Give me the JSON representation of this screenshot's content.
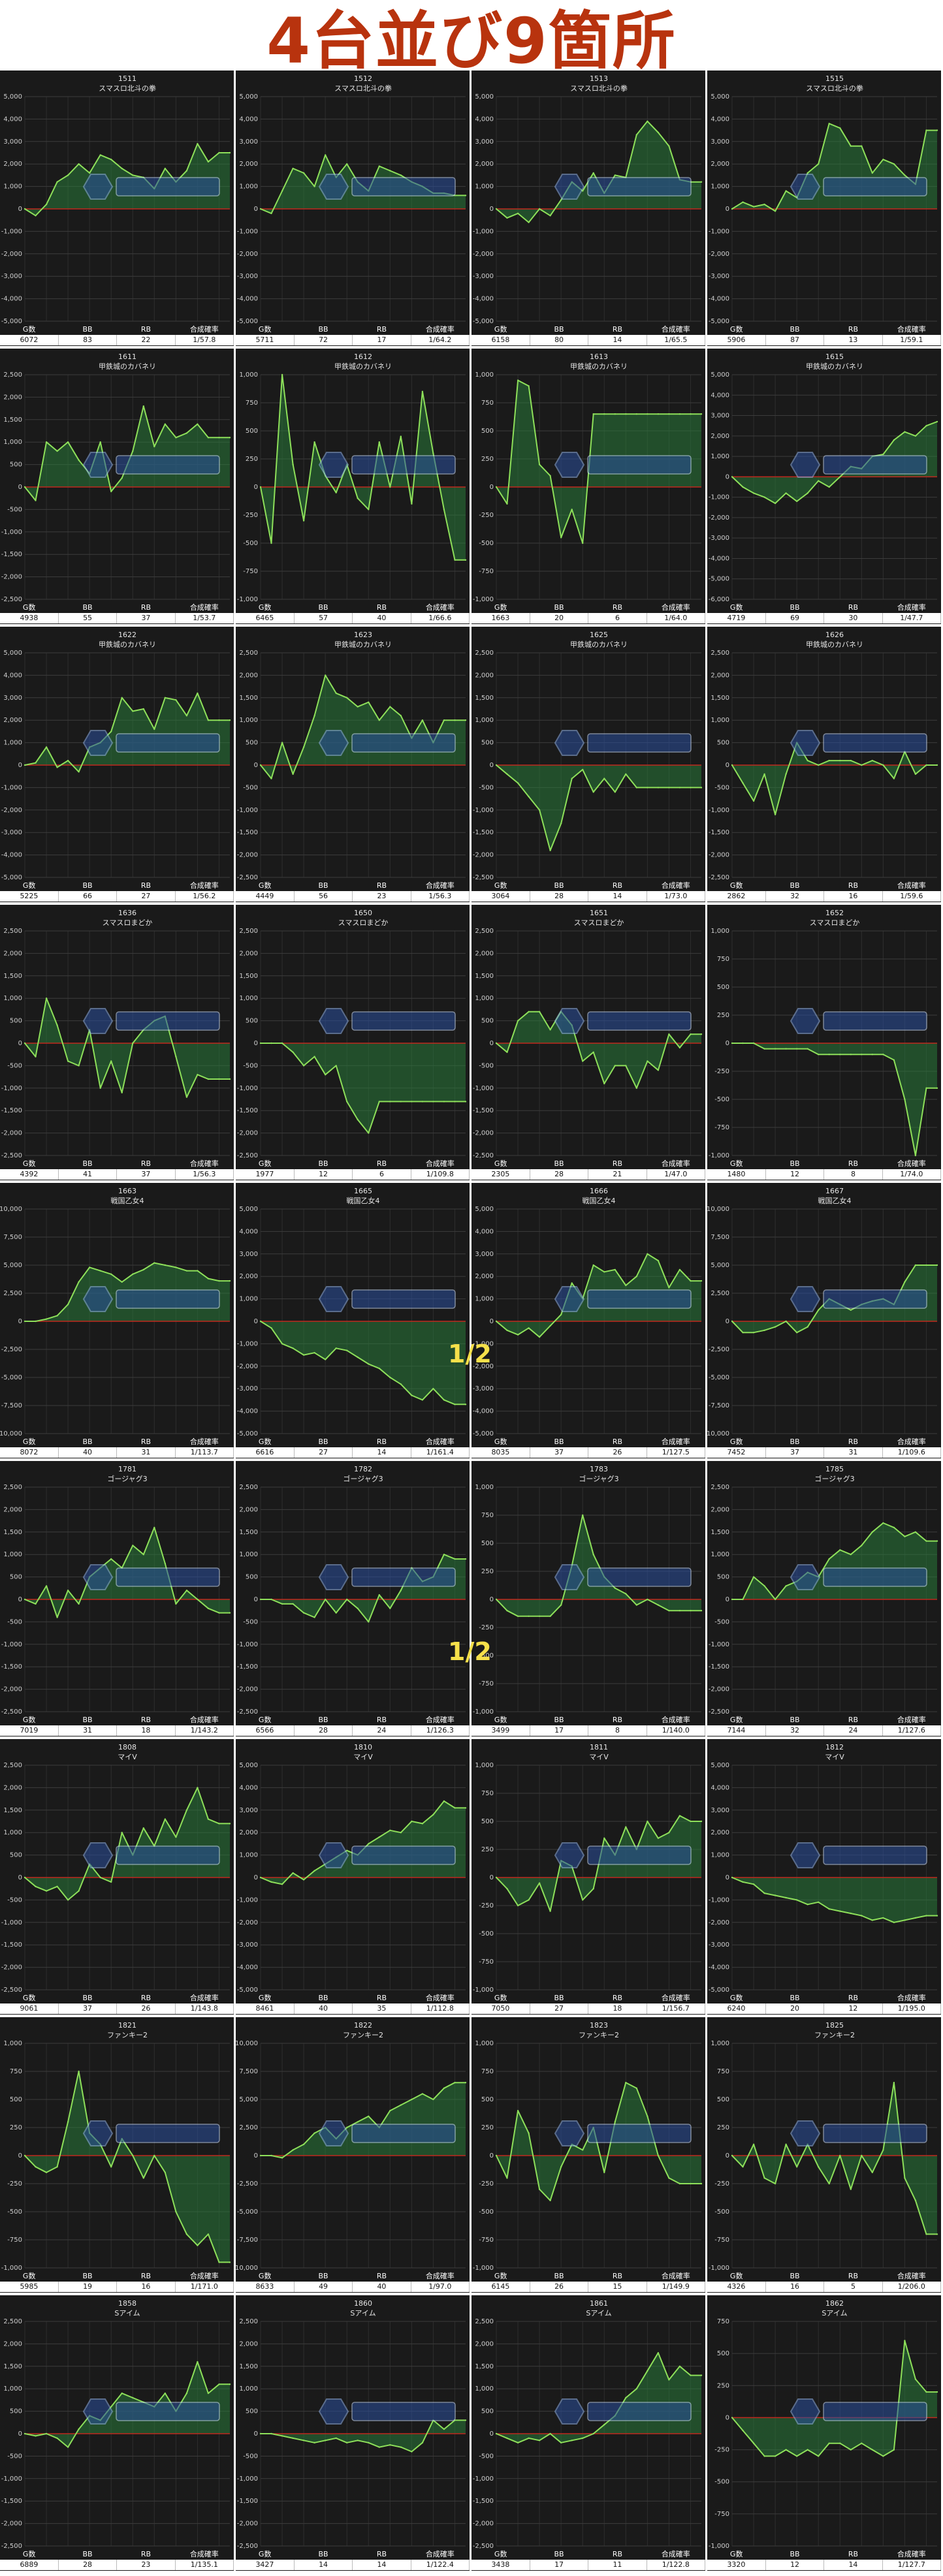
{
  "page_title": "4台並び9箇所",
  "colors": {
    "title": "#b8330e",
    "panel_bg": "#1a1a1a",
    "line": "#8ee05a",
    "fill": "#2a7a3a",
    "zero_line": "#c0281e",
    "grid": "#3c3c3c",
    "half_marker": "#f5e04a"
  },
  "stat_headers": [
    "G数",
    "BB",
    "RB",
    "合成確率"
  ],
  "half_markers": [
    "1/2",
    "1/2"
  ],
  "chart_data": [
    {
      "type": "line",
      "machine": "1511",
      "name": "スマスロ北斗の拳",
      "ylim": [
        -5000,
        5000
      ],
      "step": 1000,
      "values": [
        0,
        -300,
        200,
        1200,
        1500,
        2000,
        1600,
        2400,
        2200,
        1800,
        1500,
        1400,
        900,
        1800,
        1200,
        1700,
        2900,
        2100,
        2500,
        2500
      ],
      "stats": [
        "6072",
        "83",
        "22",
        "1/57.8"
      ]
    },
    {
      "type": "line",
      "machine": "1512",
      "name": "スマスロ北斗の拳",
      "ylim": [
        -5000,
        5000
      ],
      "step": 1000,
      "values": [
        0,
        -200,
        800,
        1800,
        1600,
        1000,
        2400,
        1400,
        2000,
        1200,
        800,
        1900,
        1700,
        1500,
        1200,
        1000,
        700,
        700,
        600,
        600
      ],
      "stats": [
        "5711",
        "72",
        "17",
        "1/64.2"
      ]
    },
    {
      "type": "line",
      "machine": "1513",
      "name": "スマスロ北斗の拳",
      "ylim": [
        -5000,
        5000
      ],
      "step": 1000,
      "values": [
        0,
        -400,
        -200,
        -600,
        0,
        -300,
        400,
        1200,
        800,
        1600,
        700,
        1500,
        1400,
        3300,
        3900,
        3400,
        2800,
        1300,
        1200,
        1200
      ],
      "stats": [
        "6158",
        "80",
        "14",
        "1/65.5"
      ]
    },
    {
      "type": "line",
      "machine": "1515",
      "name": "スマスロ北斗の拳",
      "ylim": [
        -5000,
        5000
      ],
      "step": 1000,
      "values": [
        0,
        300,
        100,
        200,
        -100,
        800,
        500,
        1600,
        2000,
        3800,
        3600,
        2800,
        2800,
        1600,
        2200,
        2000,
        1500,
        1100,
        3500,
        3500
      ],
      "stats": [
        "5906",
        "87",
        "13",
        "1/59.1"
      ]
    },
    {
      "type": "line",
      "machine": "1611",
      "name": "甲鉄城のカバネリ",
      "ylim": [
        -2500,
        2500
      ],
      "step": 500,
      "values": [
        0,
        -300,
        1000,
        800,
        1000,
        600,
        300,
        1000,
        -100,
        200,
        800,
        1800,
        900,
        1400,
        1100,
        1200,
        1400,
        1100,
        1100,
        1100
      ],
      "stats": [
        "4938",
        "55",
        "37",
        "1/53.7"
      ]
    },
    {
      "type": "line",
      "machine": "1612",
      "name": "甲鉄城のカバネリ",
      "ylim": [
        -1000,
        1000
      ],
      "step": 250,
      "values": [
        0,
        -500,
        1000,
        200,
        -300,
        400,
        100,
        -50,
        200,
        -100,
        -200,
        400,
        0,
        450,
        -150,
        850,
        300,
        -200,
        -650,
        -650
      ],
      "stats": [
        "6465",
        "57",
        "40",
        "1/66.6"
      ]
    },
    {
      "type": "line",
      "machine": "1613",
      "name": "甲鉄城のカバネリ",
      "ylim": [
        -1000,
        1000
      ],
      "step": 250,
      "values": [
        0,
        -150,
        950,
        900,
        200,
        100,
        -450,
        -200,
        -500,
        650,
        650,
        650,
        650,
        650,
        650,
        650,
        650,
        650,
        650,
        650
      ],
      "stats": [
        "1663",
        "20",
        "6",
        "1/64.0"
      ]
    },
    {
      "type": "line",
      "machine": "1615",
      "name": "甲鉄城のカバネリ",
      "ylim": [
        -6000,
        5000
      ],
      "step": 1000,
      "values": [
        0,
        -500,
        -800,
        -1000,
        -1300,
        -800,
        -1200,
        -800,
        -200,
        -500,
        0,
        500,
        400,
        1000,
        1100,
        1800,
        2200,
        2000,
        2500,
        2700
      ],
      "stats": [
        "4719",
        "69",
        "30",
        "1/47.7"
      ]
    },
    {
      "type": "line",
      "machine": "1622",
      "name": "甲鉄城のカバネリ",
      "ylim": [
        -5000,
        5000
      ],
      "step": 1000,
      "values": [
        0,
        100,
        800,
        -100,
        200,
        -300,
        800,
        1000,
        1500,
        3000,
        2400,
        2500,
        1600,
        3000,
        2900,
        2200,
        3200,
        2000,
        2000,
        2000
      ],
      "stats": [
        "5225",
        "66",
        "27",
        "1/56.2"
      ]
    },
    {
      "type": "line",
      "machine": "1623",
      "name": "甲鉄城のカバネリ",
      "ylim": [
        -2500,
        2500
      ],
      "step": 500,
      "values": [
        0,
        -300,
        500,
        -200,
        400,
        1100,
        2000,
        1600,
        1500,
        1300,
        1400,
        1000,
        1300,
        1100,
        600,
        1000,
        500,
        1000,
        1000,
        1000
      ],
      "stats": [
        "4449",
        "56",
        "23",
        "1/56.3"
      ]
    },
    {
      "type": "line",
      "machine": "1625",
      "name": "甲鉄城のカバネリ",
      "ylim": [
        -2500,
        2500
      ],
      "step": 500,
      "values": [
        0,
        -200,
        -400,
        -700,
        -1000,
        -1900,
        -1300,
        -300,
        -100,
        -600,
        -300,
        -600,
        -200,
        -500,
        -500,
        -500,
        -500,
        -500,
        -500,
        -500
      ],
      "stats": [
        "3064",
        "28",
        "14",
        "1/73.0"
      ]
    },
    {
      "type": "line",
      "machine": "1626",
      "name": "甲鉄城のカバネリ",
      "ylim": [
        -2500,
        2500
      ],
      "step": 500,
      "values": [
        0,
        -400,
        -800,
        -200,
        -1100,
        -200,
        500,
        100,
        0,
        100,
        100,
        100,
        0,
        100,
        0,
        -300,
        300,
        -200,
        0,
        0
      ],
      "stats": [
        "2862",
        "32",
        "16",
        "1/59.6"
      ]
    },
    {
      "type": "line",
      "machine": "1636",
      "name": "スマスロまどか",
      "ylim": [
        -2500,
        2500
      ],
      "step": 500,
      "values": [
        0,
        -300,
        1000,
        400,
        -400,
        -500,
        300,
        -1000,
        -400,
        -1100,
        0,
        300,
        500,
        600,
        -300,
        -1200,
        -700,
        -800,
        -800,
        -800
      ],
      "stats": [
        "4392",
        "41",
        "37",
        "1/56.3"
      ]
    },
    {
      "type": "line",
      "machine": "1650",
      "name": "スマスロまどか",
      "ylim": [
        -2500,
        2500
      ],
      "step": 500,
      "values": [
        0,
        0,
        0,
        -200,
        -500,
        -300,
        -700,
        -500,
        -1300,
        -1700,
        -2000,
        -1300,
        -1300,
        -1300,
        -1300,
        -1300,
        -1300,
        -1300,
        -1300,
        -1300
      ],
      "stats": [
        "1977",
        "12",
        "6",
        "1/109.8"
      ]
    },
    {
      "type": "line",
      "machine": "1651",
      "name": "スマスロまどか",
      "ylim": [
        -2500,
        2500
      ],
      "step": 500,
      "values": [
        0,
        -200,
        500,
        700,
        700,
        300,
        700,
        400,
        -400,
        -200,
        -900,
        -500,
        -500,
        -1000,
        -400,
        -600,
        200,
        -100,
        200,
        200
      ],
      "stats": [
        "2305",
        "28",
        "21",
        "1/47.0"
      ]
    },
    {
      "type": "line",
      "machine": "1652",
      "name": "スマスロまどか",
      "ylim": [
        -1000,
        1000
      ],
      "step": 250,
      "values": [
        0,
        0,
        0,
        -50,
        -50,
        -50,
        -50,
        -50,
        -100,
        -100,
        -100,
        -100,
        -100,
        -100,
        -100,
        -150,
        -500,
        -1000,
        -400,
        -400
      ],
      "stats": [
        "1480",
        "12",
        "8",
        "1/74.0"
      ]
    },
    {
      "type": "line",
      "machine": "1663",
      "name": "戦国乙女4",
      "ylim": [
        -10000,
        10000
      ],
      "step": 2500,
      "values": [
        0,
        0,
        200,
        500,
        1500,
        3500,
        4800,
        4500,
        4200,
        3500,
        4200,
        4600,
        5200,
        5000,
        4800,
        4500,
        4500,
        3800,
        3600,
        3600
      ],
      "stats": [
        "8072",
        "40",
        "31",
        "1/113.7"
      ]
    },
    {
      "type": "line",
      "machine": "1665",
      "name": "戦国乙女4",
      "ylim": [
        -5000,
        5000
      ],
      "step": 1000,
      "values": [
        0,
        -300,
        -1000,
        -1200,
        -1500,
        -1400,
        -1700,
        -1200,
        -1300,
        -1600,
        -1900,
        -2100,
        -2500,
        -2800,
        -3300,
        -3500,
        -3000,
        -3500,
        -3700,
        -3700
      ],
      "stats": [
        "6616",
        "27",
        "14",
        "1/161.4"
      ]
    },
    {
      "type": "line",
      "machine": "1666",
      "name": "戦国乙女4",
      "ylim": [
        -5000,
        5000
      ],
      "step": 1000,
      "values": [
        0,
        -400,
        -600,
        -300,
        -700,
        -200,
        300,
        1700,
        1000,
        2500,
        2200,
        2300,
        1600,
        2000,
        3000,
        2700,
        1500,
        2300,
        1800,
        1800
      ],
      "stats": [
        "8035",
        "37",
        "26",
        "1/127.5"
      ]
    },
    {
      "type": "line",
      "machine": "1667",
      "name": "戦国乙女4",
      "ylim": [
        -10000,
        10000
      ],
      "step": 2500,
      "values": [
        0,
        -1000,
        -1000,
        -800,
        -500,
        0,
        -1000,
        -500,
        1000,
        2000,
        1500,
        1000,
        1500,
        1800,
        2000,
        1500,
        3500,
        5000,
        5000,
        5000
      ],
      "stats": [
        "7452",
        "37",
        "31",
        "1/109.6"
      ]
    },
    {
      "type": "line",
      "machine": "1781",
      "name": "ゴージャグ3",
      "ylim": [
        -2500,
        2500
      ],
      "step": 500,
      "values": [
        0,
        -100,
        300,
        -400,
        200,
        -100,
        500,
        700,
        900,
        700,
        1200,
        1000,
        1600,
        800,
        -100,
        200,
        0,
        -200,
        -300,
        -300
      ],
      "stats": [
        "7019",
        "31",
        "18",
        "1/143.2"
      ]
    },
    {
      "type": "line",
      "machine": "1782",
      "name": "ゴージャグ3",
      "ylim": [
        -2500,
        2500
      ],
      "step": 500,
      "values": [
        0,
        0,
        -100,
        -100,
        -300,
        -400,
        0,
        -300,
        0,
        -200,
        -500,
        100,
        -200,
        200,
        700,
        400,
        500,
        1000,
        900,
        900
      ],
      "stats": [
        "6566",
        "28",
        "24",
        "1/126.3"
      ]
    },
    {
      "type": "line",
      "machine": "1783",
      "name": "ゴージャグ3",
      "ylim": [
        -1000,
        1000
      ],
      "step": 250,
      "values": [
        0,
        -100,
        -150,
        -150,
        -150,
        -150,
        -50,
        300,
        750,
        400,
        200,
        100,
        50,
        -50,
        0,
        -50,
        -100,
        -100,
        -100,
        -100
      ],
      "stats": [
        "3499",
        "17",
        "8",
        "1/140.0"
      ]
    },
    {
      "type": "line",
      "machine": "1785",
      "name": "ゴージャグ3",
      "ylim": [
        -2500,
        2500
      ],
      "step": 500,
      "values": [
        0,
        0,
        500,
        300,
        0,
        300,
        400,
        600,
        500,
        900,
        1100,
        1000,
        1200,
        1500,
        1700,
        1600,
        1400,
        1500,
        1300,
        1300
      ],
      "stats": [
        "7144",
        "32",
        "24",
        "1/127.6"
      ]
    },
    {
      "type": "line",
      "machine": "1808",
      "name": "マイV",
      "ylim": [
        -2500,
        2500
      ],
      "step": 500,
      "values": [
        0,
        -200,
        -300,
        -200,
        -500,
        -300,
        300,
        0,
        -100,
        1000,
        500,
        1100,
        700,
        1300,
        900,
        1500,
        2000,
        1300,
        1200,
        1200
      ],
      "stats": [
        "9061",
        "37",
        "26",
        "1/143.8"
      ]
    },
    {
      "type": "line",
      "machine": "1810",
      "name": "マイV",
      "ylim": [
        -5000,
        5000
      ],
      "step": 1000,
      "values": [
        0,
        -200,
        -300,
        200,
        -100,
        300,
        600,
        900,
        1200,
        1000,
        1500,
        1800,
        2100,
        2000,
        2500,
        2400,
        2800,
        3400,
        3100,
        3100
      ],
      "stats": [
        "8461",
        "40",
        "35",
        "1/112.8"
      ]
    },
    {
      "type": "line",
      "machine": "1811",
      "name": "マイV",
      "ylim": [
        -1000,
        1000
      ],
      "step": 250,
      "values": [
        0,
        -100,
        -250,
        -200,
        -50,
        -300,
        150,
        100,
        -200,
        -100,
        350,
        200,
        450,
        250,
        500,
        350,
        400,
        550,
        500,
        500
      ],
      "stats": [
        "7050",
        "27",
        "18",
        "1/156.7"
      ]
    },
    {
      "type": "line",
      "machine": "1812",
      "name": "マイV",
      "ylim": [
        -5000,
        5000
      ],
      "step": 1000,
      "values": [
        0,
        -200,
        -300,
        -700,
        -800,
        -900,
        -1000,
        -1200,
        -1100,
        -1400,
        -1500,
        -1600,
        -1700,
        -1900,
        -1800,
        -2000,
        -1900,
        -1800,
        -1700,
        -1700
      ],
      "stats": [
        "6240",
        "20",
        "12",
        "1/195.0"
      ]
    },
    {
      "type": "line",
      "machine": "1821",
      "name": "ファンキー2",
      "ylim": [
        -1000,
        1000
      ],
      "step": 250,
      "values": [
        0,
        -100,
        -150,
        -100,
        300,
        750,
        200,
        100,
        -100,
        150,
        0,
        -200,
        0,
        -150,
        -500,
        -700,
        -800,
        -700,
        -950,
        -950
      ],
      "stats": [
        "5985",
        "19",
        "16",
        "1/171.0"
      ]
    },
    {
      "type": "line",
      "machine": "1822",
      "name": "ファンキー2",
      "ylim": [
        -10000,
        10000
      ],
      "step": 2500,
      "values": [
        0,
        0,
        -200,
        500,
        1000,
        2000,
        2500,
        1500,
        2500,
        3000,
        3500,
        2500,
        4000,
        4500,
        5000,
        5500,
        5000,
        6000,
        6500,
        6500
      ],
      "stats": [
        "8633",
        "49",
        "40",
        "1/97.0"
      ]
    },
    {
      "type": "line",
      "machine": "1823",
      "name": "ファンキー2",
      "ylim": [
        -1000,
        1000
      ],
      "step": 250,
      "values": [
        0,
        -200,
        400,
        200,
        -300,
        -400,
        -100,
        100,
        50,
        250,
        -150,
        300,
        650,
        600,
        350,
        0,
        -200,
        -250,
        -250,
        -250
      ],
      "stats": [
        "6145",
        "26",
        "15",
        "1/149.9"
      ]
    },
    {
      "type": "line",
      "machine": "1825",
      "name": "ファンキー2",
      "ylim": [
        -1000,
        1000
      ],
      "step": 250,
      "values": [
        0,
        -100,
        100,
        -200,
        -250,
        100,
        -100,
        100,
        -100,
        -250,
        0,
        -300,
        0,
        -150,
        50,
        650,
        -200,
        -400,
        -700,
        -700
      ],
      "stats": [
        "4326",
        "16",
        "5",
        "1/206.0"
      ]
    },
    {
      "type": "line",
      "machine": "1858",
      "name": "Sアイム",
      "ylim": [
        -2500,
        2500
      ],
      "step": 500,
      "values": [
        0,
        -50,
        0,
        -100,
        -300,
        100,
        400,
        300,
        600,
        900,
        800,
        700,
        600,
        900,
        500,
        900,
        1600,
        900,
        1100,
        1100
      ],
      "stats": [
        "6889",
        "28",
        "23",
        "1/135.1"
      ]
    },
    {
      "type": "line",
      "machine": "1860",
      "name": "Sアイム",
      "ylim": [
        -2500,
        2500
      ],
      "step": 500,
      "values": [
        0,
        0,
        -50,
        -100,
        -150,
        -200,
        -150,
        -100,
        -200,
        -150,
        -200,
        -300,
        -250,
        -300,
        -400,
        -200,
        300,
        100,
        300,
        300
      ],
      "stats": [
        "3427",
        "14",
        "14",
        "1/122.4"
      ]
    },
    {
      "type": "line",
      "machine": "1861",
      "name": "Sアイム",
      "ylim": [
        -2500,
        2500
      ],
      "step": 500,
      "values": [
        0,
        -100,
        -200,
        -100,
        -150,
        0,
        -200,
        -150,
        -100,
        0,
        200,
        400,
        800,
        1000,
        1400,
        1800,
        1200,
        1500,
        1300,
        1300
      ],
      "stats": [
        "3438",
        "17",
        "11",
        "1/122.8"
      ]
    },
    {
      "type": "line",
      "machine": "1862",
      "name": "Sアイム",
      "ylim": [
        -1000,
        750
      ],
      "step": 250,
      "values": [
        0,
        -100,
        -200,
        -300,
        -300,
        -250,
        -300,
        -250,
        -300,
        -200,
        -200,
        -250,
        -200,
        -250,
        -300,
        -250,
        600,
        300,
        200,
        200
      ],
      "stats": [
        "3320",
        "12",
        "14",
        "1/127.7"
      ]
    }
  ]
}
